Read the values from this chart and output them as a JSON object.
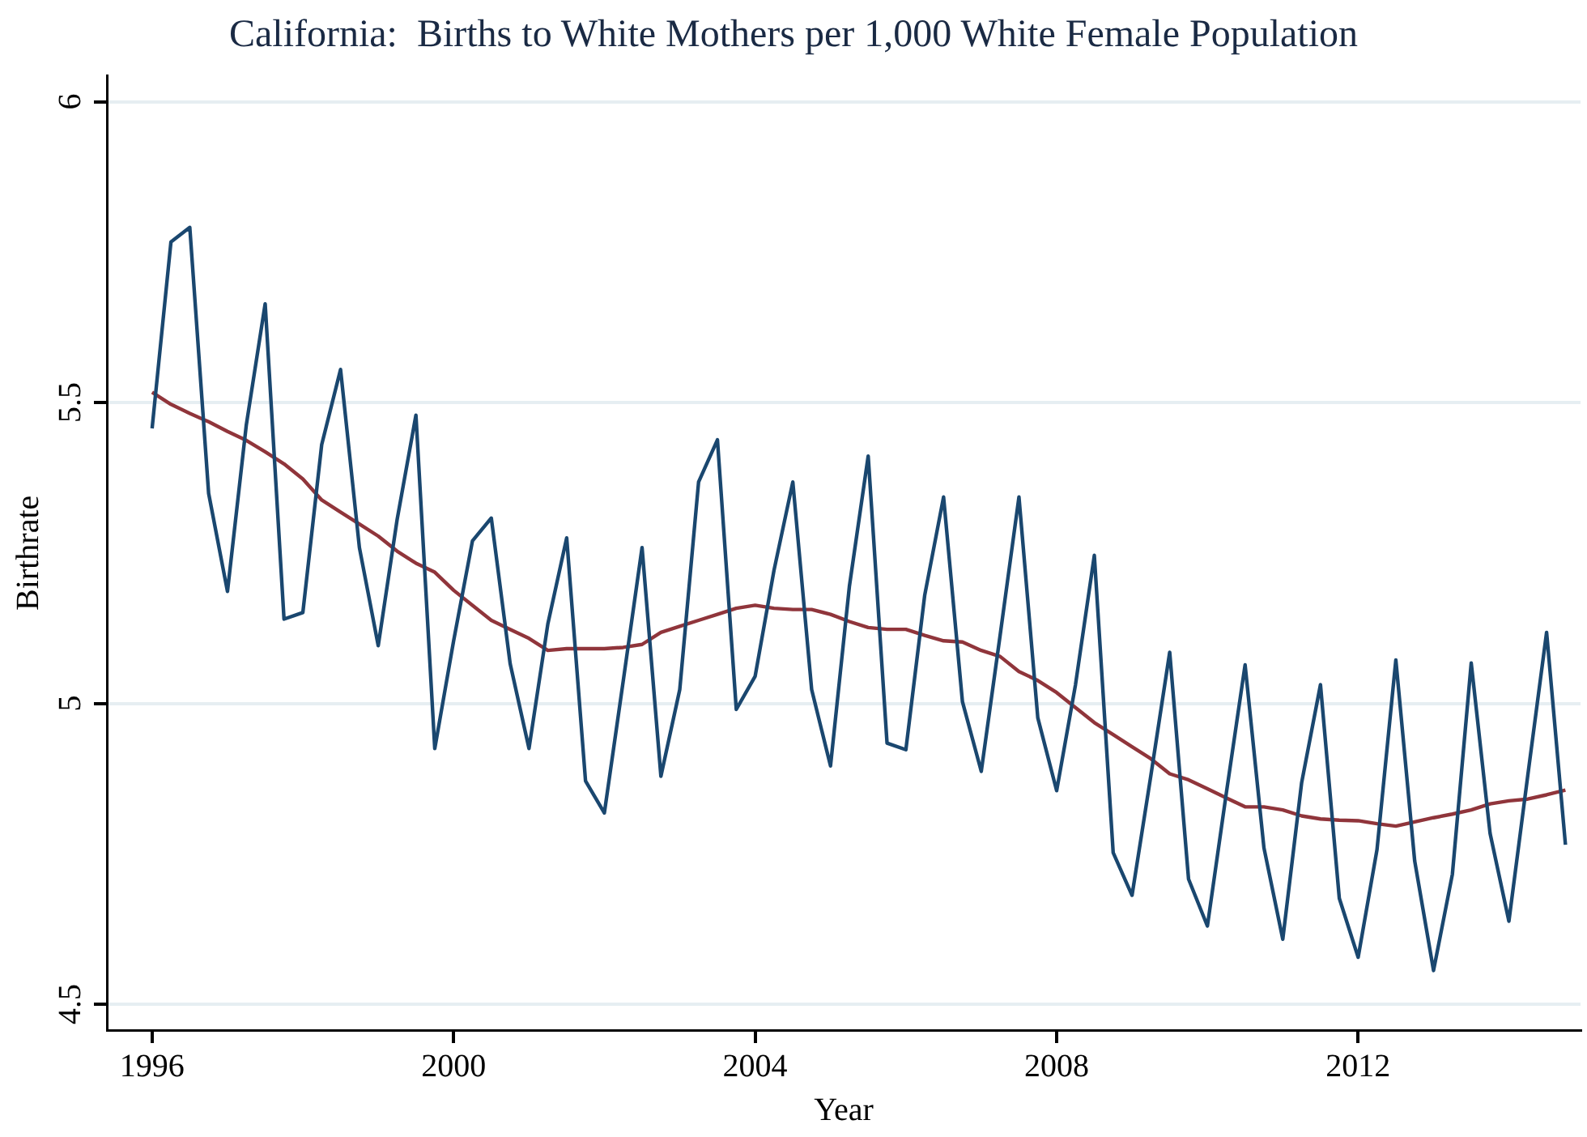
{
  "chart_data": {
    "type": "line",
    "title": "California:  Births to White Mothers per 1,000 White Female Population",
    "xlabel": "Year",
    "ylabel": "Birthrate",
    "x": [
      1996,
      1996.25,
      1996.5,
      1996.75,
      1997,
      1997.25,
      1997.5,
      1997.75,
      1998,
      1998.25,
      1998.5,
      1998.75,
      1999,
      1999.25,
      1999.5,
      1999.75,
      2000,
      2000.25,
      2000.5,
      2000.75,
      2001,
      2001.25,
      2001.5,
      2001.75,
      2002,
      2002.25,
      2002.5,
      2002.75,
      2003,
      2003.25,
      2003.5,
      2003.75,
      2004,
      2004.25,
      2004.5,
      2004.75,
      2005,
      2005.25,
      2005.5,
      2005.75,
      2006,
      2006.25,
      2006.5,
      2006.75,
      2007,
      2007.25,
      2007.5,
      2007.75,
      2008,
      2008.25,
      2008.5,
      2008.75,
      2009,
      2009.25,
      2009.5,
      2009.75,
      2010,
      2010.25,
      2010.5,
      2010.75,
      2011,
      2011.25,
      2011.5,
      2011.75,
      2012,
      2012.25,
      2012.5,
      2012.75,
      2013,
      2013.25,
      2013.5,
      2013.75,
      2014,
      2014.25,
      2014.5,
      2014.75
    ],
    "series": [
      {
        "color": "#1a476f",
        "values": [
          5.457,
          5.767,
          5.791,
          5.349,
          5.186,
          5.463,
          5.664,
          5.14,
          5.151,
          5.43,
          5.555,
          5.259,
          5.096,
          5.305,
          5.479,
          4.925,
          5.104,
          5.27,
          5.308,
          5.066,
          4.925,
          5.132,
          5.275,
          4.871,
          4.818,
          5.037,
          5.259,
          4.879,
          5.023,
          5.368,
          5.438,
          4.99,
          5.045,
          5.221,
          5.368,
          5.023,
          4.896,
          5.194,
          5.411,
          4.934,
          4.923,
          5.18,
          5.343,
          5.003,
          4.887,
          5.113,
          5.343,
          4.976,
          4.855,
          5.031,
          5.246,
          4.752,
          4.681,
          4.88,
          5.085,
          4.708,
          4.63,
          4.85,
          5.064,
          4.76,
          4.608,
          4.868,
          5.031,
          4.676,
          4.578,
          4.757,
          5.072,
          4.738,
          4.556,
          4.716,
          5.067,
          4.784,
          4.638,
          4.88,
          5.118,
          4.765
        ]
      },
      {
        "color": "#90353b",
        "values": [
          5.517,
          5.497,
          5.482,
          5.468,
          5.452,
          5.437,
          5.418,
          5.398,
          5.373,
          5.338,
          5.318,
          5.298,
          5.278,
          5.253,
          5.233,
          5.218,
          5.188,
          5.163,
          5.138,
          5.123,
          5.108,
          5.088,
          5.091,
          5.091,
          5.091,
          5.093,
          5.098,
          5.118,
          5.128,
          5.138,
          5.148,
          5.158,
          5.163,
          5.158,
          5.156,
          5.156,
          5.148,
          5.136,
          5.126,
          5.123,
          5.123,
          5.113,
          5.104,
          5.102,
          5.088,
          5.078,
          5.053,
          5.038,
          5.018,
          4.993,
          4.968,
          4.948,
          4.928,
          4.908,
          4.883,
          4.873,
          4.858,
          4.843,
          4.828,
          4.828,
          4.823,
          4.813,
          4.808,
          4.806,
          4.805,
          4.8,
          4.796,
          4.803,
          4.81,
          4.816,
          4.823,
          4.833,
          4.838,
          4.841,
          4.848,
          4.856
        ]
      }
    ],
    "xlim": [
      1995.4,
      2014.95
    ],
    "xticks": [
      1996,
      2000,
      2004,
      2008,
      2012
    ],
    "ylim": [
      4.457,
      6.043
    ],
    "yticks": [
      4.5,
      5,
      5.5,
      6
    ],
    "grid": "y",
    "legend": false,
    "marker": "none",
    "line_style": "solid"
  }
}
